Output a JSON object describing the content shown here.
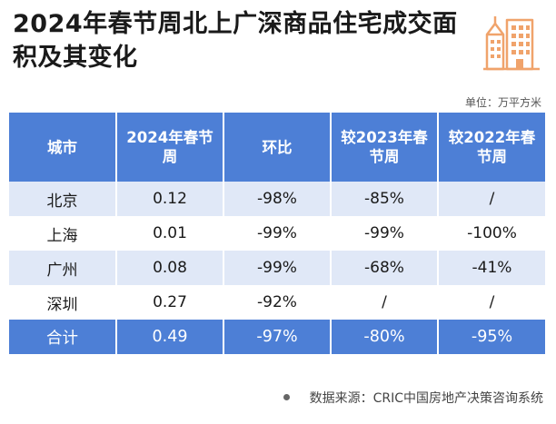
{
  "title": "2024年春节周北上广深商品住宅成交面积及其变化",
  "unit_note": "单位：万平方米",
  "table": {
    "headers": [
      "城市",
      "2024年春节周",
      "环比",
      "较2023年春节周",
      "较2022年春节周"
    ],
    "rows": [
      [
        "北京",
        "0.12",
        "-98%",
        "-85%",
        "/"
      ],
      [
        "上海",
        "0.01",
        "-99%",
        "-99%",
        "-100%"
      ],
      [
        "广州",
        "0.08",
        "-99%",
        "-68%",
        "-41%"
      ],
      [
        "深圳",
        "0.27",
        "-92%",
        "/",
        "/"
      ]
    ],
    "total": [
      "合计",
      "0.49",
      "-97%",
      "-80%",
      "-95%"
    ]
  },
  "source": "数据来源：CRIC中国房地产决策咨询系统",
  "colors": {
    "header_bg": "#4d7fd6",
    "alt_row_bg": "#e0e8f7",
    "logo_orange": "#f0a36b"
  },
  "icons": {
    "logo": "building-icon",
    "bullet": "dot-icon"
  }
}
